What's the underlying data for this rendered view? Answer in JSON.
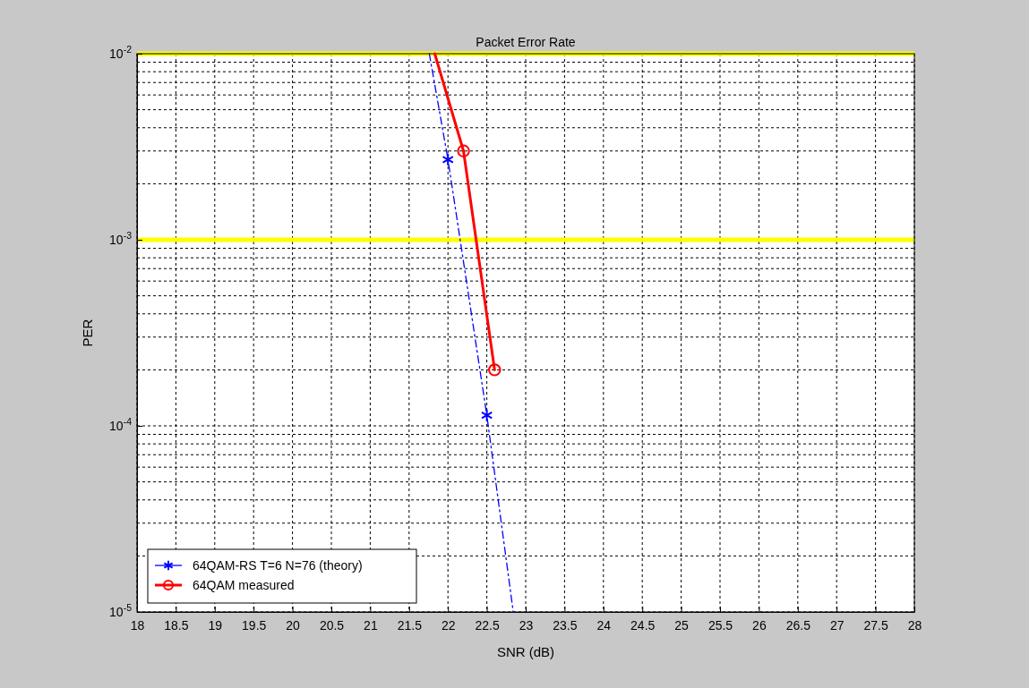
{
  "chart_data": {
    "type": "line",
    "title": "Packet Error Rate",
    "xlabel": "SNR (dB)",
    "ylabel": "PER",
    "log": "y",
    "grid": true,
    "legend": "bottom left",
    "xlim": [
      18,
      28
    ],
    "xticks": [
      18,
      18.5,
      19,
      19.5,
      20,
      20.5,
      21,
      21.5,
      22,
      22.5,
      23,
      23.5,
      24,
      24.5,
      25,
      25.5,
      26,
      26.5,
      27,
      27.5,
      28
    ],
    "ylim": [
      1e-05,
      0.01
    ],
    "yticks": [
      {
        "value": 1e-05,
        "label": "10$^{-5}$"
      },
      {
        "value": 0.0001,
        "label": "10$^{-4}$"
      },
      {
        "value": 0.001,
        "label": "10$^{-3}$"
      },
      {
        "value": 0.01,
        "label": "10$^{-2}$"
      }
    ],
    "ref_lines": [
      {
        "axis": "y",
        "value": 0.01,
        "color": "#ffff00"
      },
      {
        "axis": "y",
        "value": 0.001,
        "color": "#ffff00"
      }
    ],
    "series": [
      {
        "color": "#0000ff",
        "line_style": "dashed",
        "marker": "none",
        "x": [
          21.76,
          22,
          22.5,
          22.84
        ],
        "values": [
          0.01,
          0.0027,
          0.000114,
          1e-05
        ]
      },
      {
        "color": "#ff0000",
        "line_style": "solid",
        "marker": "none",
        "x": [
          21.83,
          22.2,
          22.6
        ],
        "values": [
          0.01,
          0.003,
          0.0002
        ]
      },
      {
        "type": "scatter",
        "name": "64QAM-RS T=6 N=76 (theory)",
        "color": "#0000ff",
        "marker": "cross",
        "line_style": "dashed",
        "x": [
          22,
          22.5
        ],
        "values": [
          0.0027,
          0.000114
        ]
      },
      {
        "type": "scatter",
        "name": "64QAM measured",
        "color": "#ff0000",
        "marker": "circle",
        "line_style": "solid",
        "x": [
          22.2,
          22.6
        ],
        "values": [
          0.003,
          0.0002
        ]
      }
    ]
  }
}
